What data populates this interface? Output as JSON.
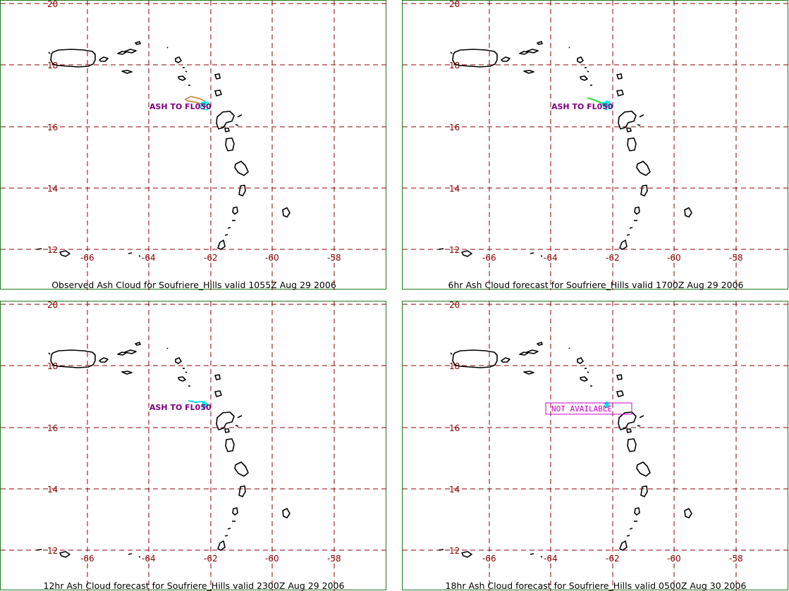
{
  "y_ticks": [
    "20",
    "18",
    "16",
    "14",
    "12"
  ],
  "x_ticks": [
    "-66",
    "-64",
    "-62",
    "-60",
    "-58"
  ],
  "colors": {
    "grid": "#8b0000",
    "frame": "#1f7a1f",
    "observed_cloud": "#c87830",
    "forecast_6hr_cloud": "#33dd33",
    "volcano_marker": "#00e5e5",
    "ash_label": "#800080",
    "not_available_label": "#cc00cc"
  },
  "icons": {
    "volcano": "volcano-star-icon"
  },
  "panels": [
    {
      "caption": "Observed Ash Cloud for Soufriere_Hills valid 1055Z Aug 29 2006",
      "label": "ASH TO FL050",
      "label_style": "ash",
      "cloud": "observed"
    },
    {
      "caption": "6hr Ash Cloud forecast for Soufriere_Hills valid 1700Z Aug 29 2006",
      "label": "ASH TO FL050",
      "label_style": "ash",
      "cloud": "forecast"
    },
    {
      "caption": "12hr Ash Cloud forecast for Soufriere_Hills valid 2300Z Aug 29 2006",
      "label": "ASH TO FL050",
      "label_style": "ash",
      "cloud": "forecast"
    },
    {
      "caption": "18hr Ash Cloud forecast for Soufriere_Hills valid 0500Z Aug 30 2006",
      "label": "NOT AVAILABLE",
      "label_style": "boxed",
      "cloud": "none"
    }
  ]
}
